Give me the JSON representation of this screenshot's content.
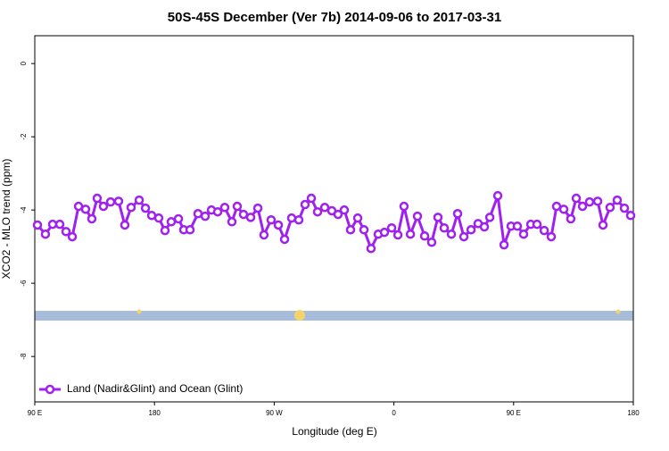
{
  "chart_data": {
    "type": "line",
    "title": "50S-45S December (Ver 7b)   2014-09-06 to 2017-03-31",
    "x_label": "Longitude (deg E)",
    "y_label": "XCO2 - MLO trend (ppm)",
    "xlim": [
      90,
      540
    ],
    "xticks": [
      {
        "value": 90,
        "label": "90 E"
      },
      180,
      {
        "value": 270,
        "label": "90 W"
      },
      {
        "value": 360,
        "label": "0"
      },
      {
        "value": 450,
        "label": "90 E"
      },
      {
        "value": 540,
        "label": "180"
      }
    ],
    "ylim": [
      -9.24,
      0.76
    ],
    "yticks": [
      0,
      -2,
      -4,
      -6,
      -8
    ],
    "legend_position": "lower left",
    "series": [
      {
        "name": "Land (Nadir&Glint) and Ocean (Glint)",
        "color": "#a020f0",
        "x": [
          92.0,
          98.0,
          103.4,
          108.8,
          113.5,
          118.2,
          122.9,
          128.2,
          132.9,
          136.9,
          141.6,
          147.0,
          153.0,
          157.7,
          162.4,
          168.5,
          173.2,
          177.9,
          183.2,
          187.9,
          192.6,
          198.0,
          202.0,
          206.7,
          212.7,
          218.1,
          222.8,
          227.5,
          232.8,
          238.2,
          242.2,
          246.9,
          252.3,
          257.7,
          262.3,
          267.7,
          273.1,
          277.8,
          283.1,
          288.5,
          293.2,
          297.9,
          302.6,
          308.0,
          313.3,
          318.0,
          322.7,
          327.4,
          332.8,
          337.5,
          342.8,
          348.2,
          352.9,
          358.3,
          363.0,
          367.6,
          372.4,
          377.7,
          383.1,
          388.4,
          393.1,
          397.8,
          403.2,
          407.9,
          412.6,
          418.0,
          423.3,
          428.0,
          432.1,
          438.1,
          442.8,
          448.1,
          452.8,
          457.5,
          462.9,
          467.6,
          473.0,
          478.3,
          482.3,
          487.7,
          493.0,
          497.1,
          501.8,
          507.1,
          513.2,
          517.2,
          522.5,
          527.9,
          533.3,
          538.0
        ],
        "values": [
          -4.41,
          -4.66,
          -4.39,
          -4.39,
          -4.59,
          -4.73,
          -3.9,
          -3.98,
          -4.24,
          -3.68,
          -3.9,
          -3.78,
          -3.76,
          -4.41,
          -3.93,
          -3.73,
          -3.95,
          -4.15,
          -4.22,
          -4.56,
          -4.32,
          -4.24,
          -4.54,
          -4.54,
          -4.1,
          -4.17,
          -4.0,
          -4.05,
          -3.93,
          -4.32,
          -3.9,
          -4.12,
          -4.2,
          -3.95,
          -4.68,
          -4.27,
          -4.41,
          -4.8,
          -4.22,
          -4.27,
          -3.85,
          -3.68,
          -4.05,
          -3.93,
          -4.02,
          -4.12,
          -4.0,
          -4.54,
          -4.22,
          -4.54,
          -5.05,
          -4.66,
          -4.61,
          -4.49,
          -4.68,
          -3.9,
          -4.66,
          -4.17,
          -4.71,
          -4.88,
          -4.2,
          -4.49,
          -4.66,
          -4.1,
          -4.73,
          -4.54,
          -4.37,
          -4.46,
          -4.2,
          -3.61,
          -4.95,
          -4.44,
          -4.44,
          -4.66,
          -4.39,
          -4.39,
          -4.56,
          -4.73,
          -3.9,
          -3.98,
          -4.24,
          -3.68,
          -3.9,
          -3.78,
          -3.76,
          -4.41,
          -3.93,
          -3.73,
          -3.95,
          -4.15
        ]
      }
    ]
  }
}
